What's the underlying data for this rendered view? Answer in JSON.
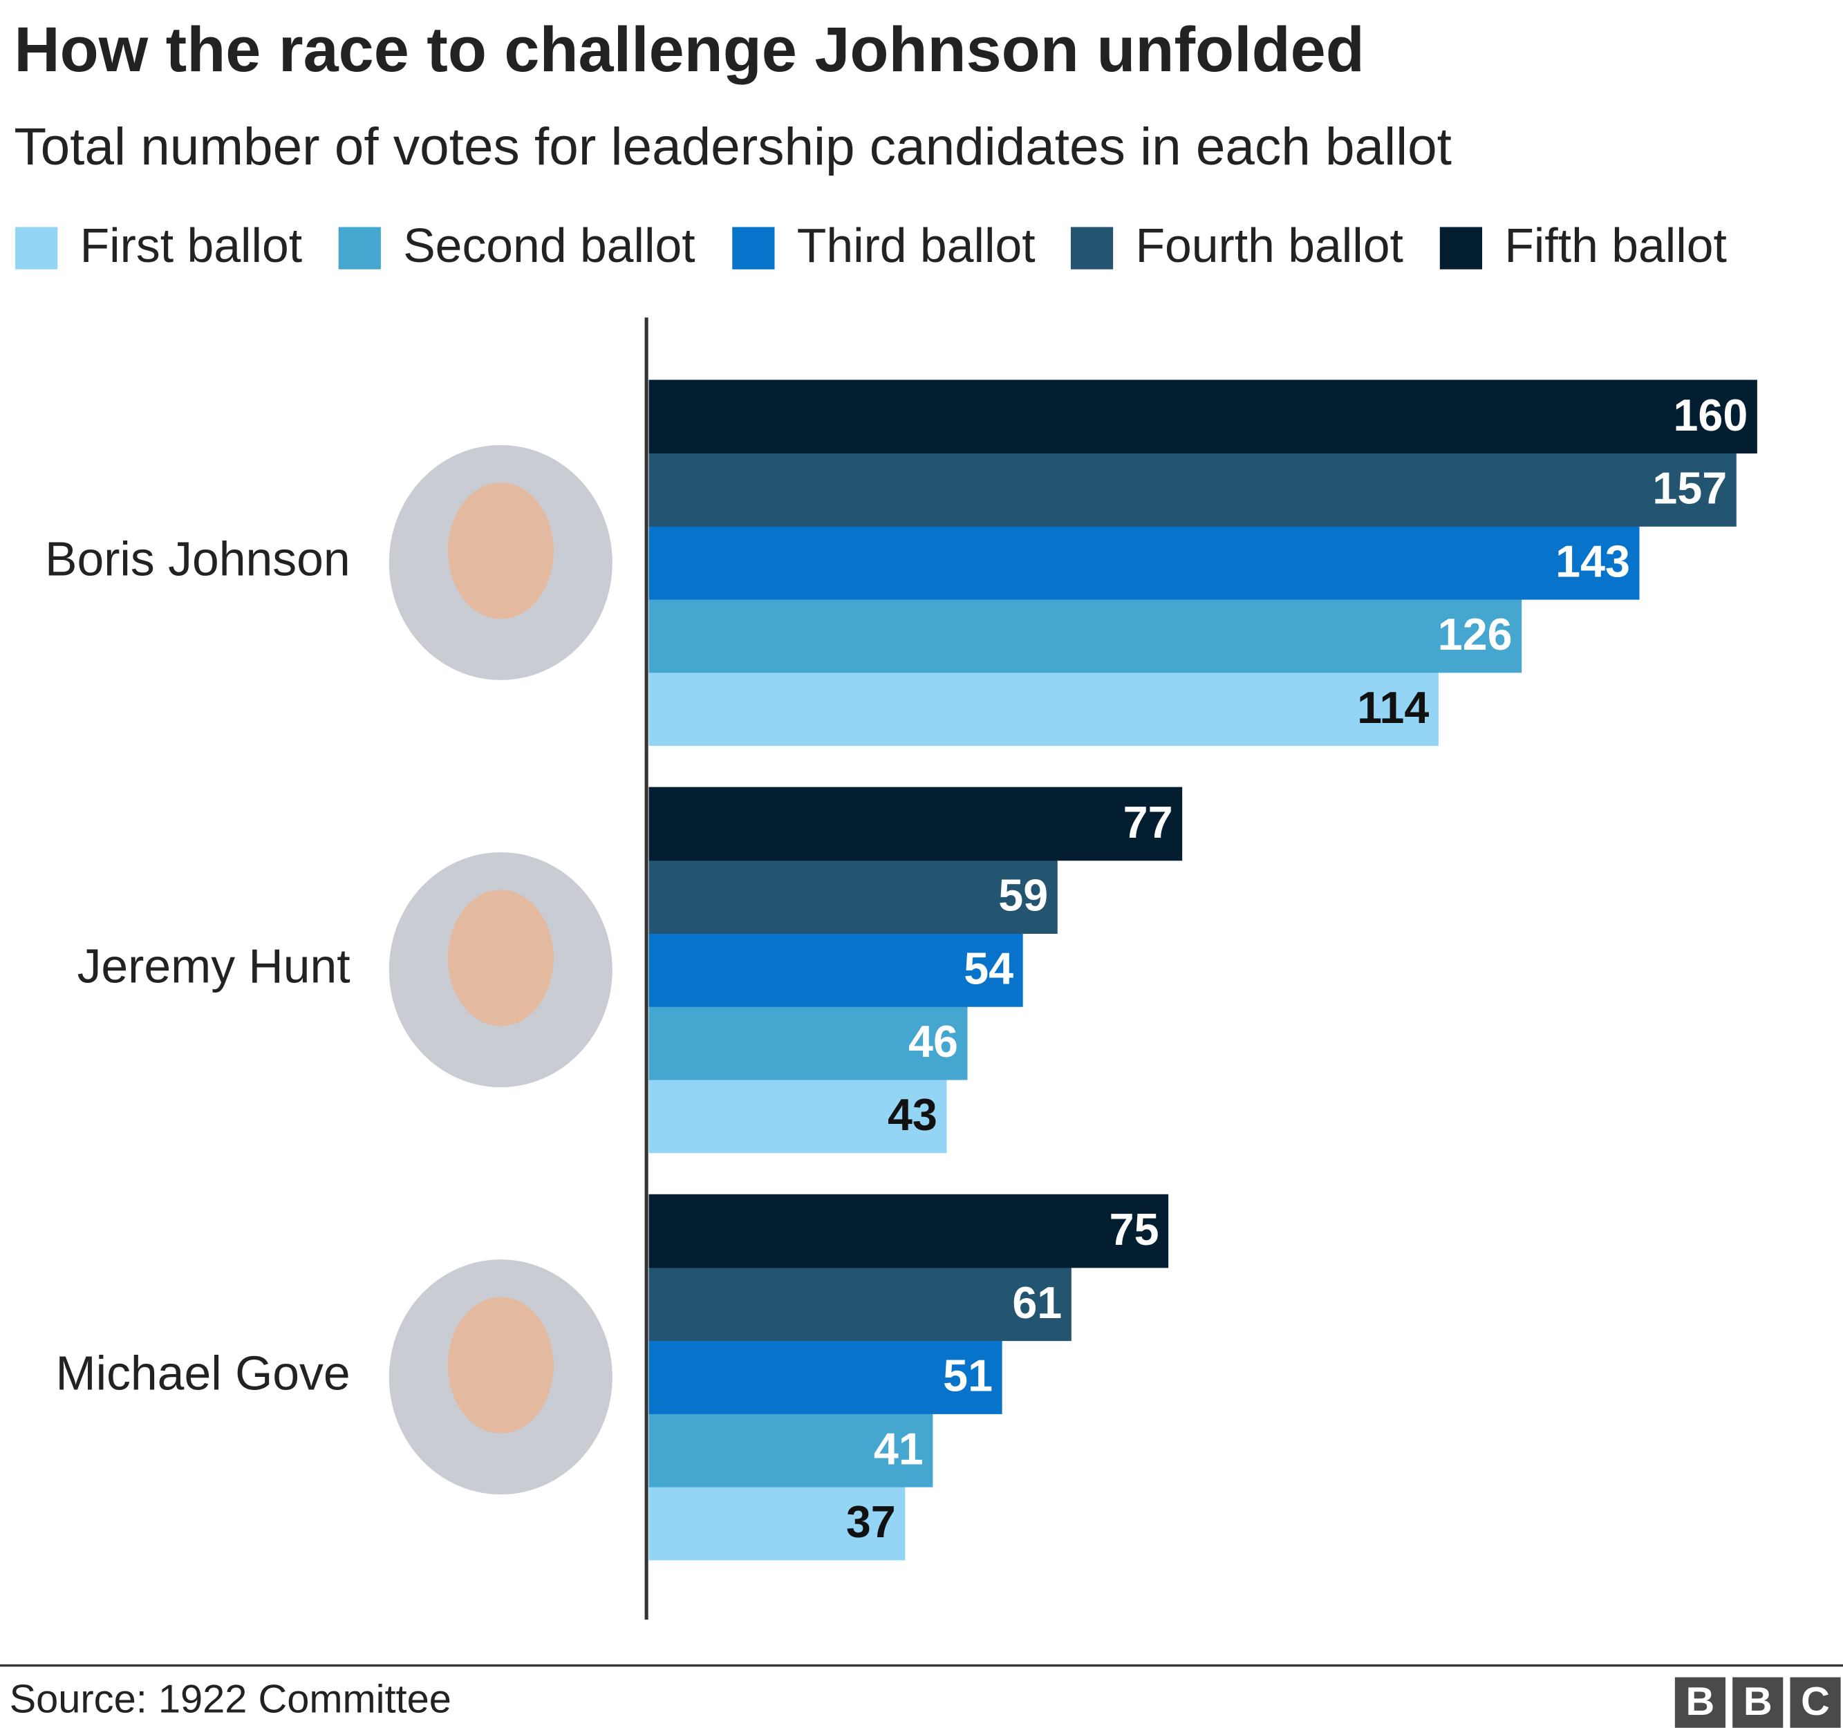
{
  "chart_data": {
    "type": "bar",
    "orientation": "horizontal",
    "title": "How the race to challenge Johnson unfolded",
    "subtitle": "Total number of votes for leadership candidates in each ballot",
    "categories": [
      "Boris Johnson",
      "Jeremy Hunt",
      "Michael Gove"
    ],
    "series": [
      {
        "name": "First ballot",
        "color": "#94d5f5",
        "values": [
          114,
          43,
          37
        ]
      },
      {
        "name": "Second ballot",
        "color": "#45a6d0",
        "values": [
          126,
          46,
          41
        ]
      },
      {
        "name": "Third ballot",
        "color": "#0873cb",
        "values": [
          143,
          54,
          51
        ]
      },
      {
        "name": "Fourth ballot",
        "color": "#235470",
        "values": [
          157,
          59,
          61
        ]
      },
      {
        "name": "Fifth ballot",
        "color": "#021e30",
        "values": [
          160,
          77,
          75
        ]
      }
    ],
    "source": "Source: 1922 Committee",
    "logo": [
      "B",
      "B",
      "C"
    ]
  }
}
